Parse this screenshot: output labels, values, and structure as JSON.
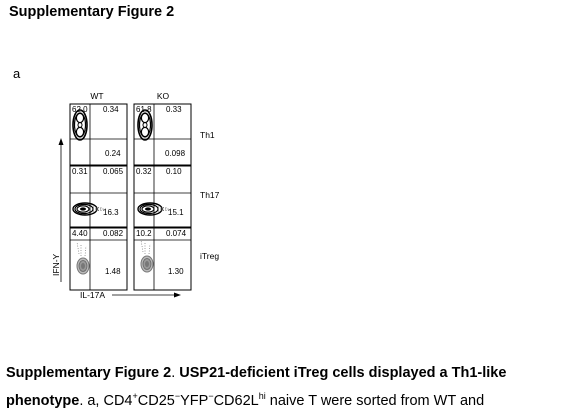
{
  "heading": "Supplementary Figure 2",
  "panel_letter": "a",
  "figure": {
    "columns": [
      "WT",
      "KO"
    ],
    "rows": [
      {
        "label": "Th1",
        "values": {
          "WT": {
            "ul": "62.0",
            "ur": "0.34",
            "lr": "0.24"
          },
          "KO": {
            "ul": "61.8",
            "ur": "0.33",
            "lr": "0.098"
          }
        }
      },
      {
        "label": "Th17",
        "values": {
          "WT": {
            "ul": "0.31",
            "ur": "0.065",
            "lr": "16.3"
          },
          "KO": {
            "ul": "0.32",
            "ur": "0.10",
            "lr": "15.1"
          }
        }
      },
      {
        "label": "iTreg",
        "values": {
          "WT": {
            "ul": "4.40",
            "ur": "0.082",
            "lr": "1.48"
          },
          "KO": {
            "ul": "10.2",
            "ur": "0.074",
            "lr": "1.30"
          }
        }
      }
    ],
    "x_axis_label": "IL-17A",
    "y_axis_label": "IFN-Y"
  },
  "caption": {
    "line1_label": "Supplementary Figure 2",
    "line1_sep": ". ",
    "line1_title": "USP21-deficient iTreg cells displayed a Th1-like",
    "line2_bold": "phenotype",
    "line2_a": ". a, CD4",
    "line2_sup1": "+",
    "line2_b": "CD25",
    "line2_sup2": "−",
    "line2_c": "YFP",
    "line2_sup3": "−",
    "line2_d": "CD62L",
    "line2_sup4": "hi",
    "line2_e": " naive T were sorted from WT and"
  }
}
